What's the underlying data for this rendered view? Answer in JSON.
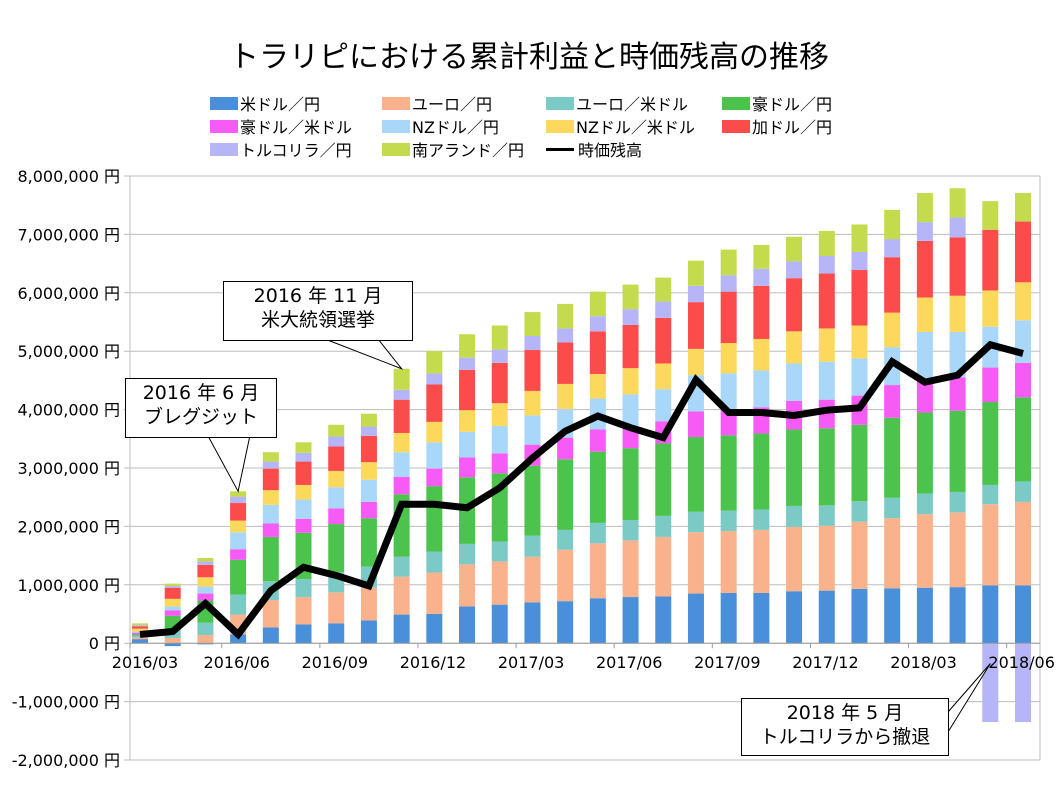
{
  "chart_data": {
    "type": "bar",
    "stacked": true,
    "title": "トラリピにおける累計利益と時価残高の推移",
    "xlabel": "",
    "ylabel": "",
    "ylim": [
      -2000000,
      8000000
    ],
    "yticks": [
      8000000,
      7000000,
      6000000,
      5000000,
      4000000,
      3000000,
      2000000,
      1000000,
      0,
      -1000000,
      -2000000
    ],
    "ytick_labels": [
      "8,000,000 円",
      "7,000,000 円",
      "6,000,000 円",
      "5,000,000 円",
      "4,000,000 円",
      "3,000,000 円",
      "2,000,000 円",
      "1,000,000 円",
      "0 円",
      "-1,000,000 円",
      "-2,000,000 円"
    ],
    "grid": true,
    "legend_position": "top",
    "categories": [
      "2016/03",
      "2016/04",
      "2016/05",
      "2016/06",
      "2016/07",
      "2016/08",
      "2016/09",
      "2016/10",
      "2016/11",
      "2016/12",
      "2017/01",
      "2017/02",
      "2017/03",
      "2017/04",
      "2017/05",
      "2017/06",
      "2017/07",
      "2017/08",
      "2017/09",
      "2017/10",
      "2017/11",
      "2017/12",
      "2018/01",
      "2018/02",
      "2018/03",
      "2018/04",
      "2018/05",
      "2018/06"
    ],
    "xtick_labels": [
      {
        "index": 0,
        "label": "2016/03"
      },
      {
        "index": 3,
        "label": "2016/06"
      },
      {
        "index": 6,
        "label": "2016/09"
      },
      {
        "index": 9,
        "label": "2016/12"
      },
      {
        "index": 12,
        "label": "2017/03"
      },
      {
        "index": 15,
        "label": "2017/06"
      },
      {
        "index": 18,
        "label": "2017/09"
      },
      {
        "index": 21,
        "label": "2017/12"
      },
      {
        "index": 24,
        "label": "2018/03"
      },
      {
        "index": 27,
        "label": "2018/06"
      }
    ],
    "series": [
      {
        "name": "米ドル/円",
        "color": "#4a8fd9",
        "values": [
          70000,
          -50000,
          -20000,
          150000,
          270000,
          320000,
          340000,
          390000,
          490000,
          500000,
          630000,
          660000,
          700000,
          720000,
          770000,
          790000,
          800000,
          850000,
          860000,
          860000,
          890000,
          900000,
          930000,
          940000,
          950000,
          960000,
          990000,
          990000
        ]
      },
      {
        "name": "ユーロ/円",
        "color": "#f9b28c",
        "values": [
          30000,
          90000,
          140000,
          340000,
          470000,
          470000,
          530000,
          560000,
          650000,
          710000,
          720000,
          740000,
          780000,
          880000,
          940000,
          970000,
          1020000,
          1050000,
          1060000,
          1080000,
          1100000,
          1110000,
          1150000,
          1200000,
          1260000,
          1280000,
          1390000,
          1430000
        ]
      },
      {
        "name": "ユーロ/米ドル",
        "color": "#7ccac6",
        "values": [
          30000,
          140000,
          210000,
          340000,
          320000,
          310000,
          350000,
          360000,
          340000,
          360000,
          350000,
          340000,
          360000,
          340000,
          350000,
          350000,
          360000,
          350000,
          350000,
          350000,
          360000,
          350000,
          350000,
          350000,
          350000,
          350000,
          330000,
          350000
        ]
      },
      {
        "name": "豪ドル/円",
        "color": "#4cc34c",
        "values": [
          20000,
          240000,
          380000,
          600000,
          760000,
          790000,
          820000,
          830000,
          1070000,
          1120000,
          1140000,
          1170000,
          1200000,
          1210000,
          1220000,
          1230000,
          1240000,
          1280000,
          1290000,
          1300000,
          1310000,
          1320000,
          1310000,
          1370000,
          1390000,
          1390000,
          1420000,
          1440000
        ]
      },
      {
        "name": "豪ドル/米ドル",
        "color": "#f65cf5",
        "values": [
          30000,
          90000,
          120000,
          180000,
          230000,
          240000,
          270000,
          280000,
          300000,
          300000,
          340000,
          340000,
          360000,
          370000,
          380000,
          370000,
          380000,
          440000,
          440000,
          450000,
          490000,
          490000,
          500000,
          560000,
          570000,
          570000,
          590000,
          590000
        ]
      },
      {
        "name": "NZドル/円",
        "color": "#a9d7f9",
        "values": [
          20000,
          70000,
          120000,
          290000,
          320000,
          330000,
          360000,
          380000,
          420000,
          450000,
          440000,
          470000,
          500000,
          490000,
          530000,
          550000,
          550000,
          620000,
          620000,
          630000,
          640000,
          650000,
          640000,
          650000,
          810000,
          780000,
          700000,
          730000
        ]
      },
      {
        "name": "NZドル/米ドル",
        "color": "#fcd95d",
        "values": [
          50000,
          130000,
          160000,
          200000,
          250000,
          250000,
          280000,
          300000,
          330000,
          350000,
          370000,
          390000,
          420000,
          430000,
          420000,
          450000,
          440000,
          450000,
          520000,
          540000,
          550000,
          570000,
          560000,
          590000,
          590000,
          620000,
          620000,
          650000
        ]
      },
      {
        "name": "加ドル/円",
        "color": "#fb4b4b",
        "values": [
          40000,
          190000,
          210000,
          300000,
          370000,
          400000,
          420000,
          450000,
          570000,
          640000,
          690000,
          690000,
          700000,
          710000,
          730000,
          740000,
          780000,
          800000,
          880000,
          910000,
          910000,
          940000,
          950000,
          950000,
          970000,
          1000000,
          1040000,
          1040000
        ]
      },
      {
        "name": "トルコリラ/円",
        "color": "#b5b5f8",
        "values": [
          20000,
          30000,
          60000,
          110000,
          120000,
          150000,
          170000,
          160000,
          170000,
          190000,
          210000,
          230000,
          240000,
          240000,
          260000,
          270000,
          280000,
          280000,
          280000,
          290000,
          290000,
          300000,
          310000,
          310000,
          320000,
          340000,
          -1350000,
          -1350000
        ]
      },
      {
        "name": "南アランド/円",
        "color": "#c4db4e",
        "values": [
          30000,
          40000,
          60000,
          90000,
          160000,
          180000,
          200000,
          220000,
          360000,
          380000,
          400000,
          410000,
          410000,
          420000,
          420000,
          420000,
          410000,
          430000,
          440000,
          410000,
          420000,
          430000,
          470000,
          500000,
          500000,
          500000,
          490000,
          490000
        ]
      }
    ],
    "line_series": {
      "name": "時価残高",
      "color": "#000000",
      "values": [
        150000,
        200000,
        680000,
        150000,
        900000,
        1300000,
        1160000,
        980000,
        2380000,
        2380000,
        2320000,
        2660000,
        3170000,
        3630000,
        3890000,
        3690000,
        3520000,
        4510000,
        3950000,
        3950000,
        3900000,
        3990000,
        4030000,
        4820000,
        4470000,
        4590000,
        5110000,
        4960000
      ]
    },
    "annotations": [
      {
        "text_line1": "2016 年 6 月",
        "text_line2": "ブレグジット",
        "target_index": 3
      },
      {
        "text_line1": "2016 年 11 月",
        "text_line2": "米大統領選挙",
        "target_index": 8
      },
      {
        "text_line1": "2018 年 5 月",
        "text_line2": "トルコリラから撤退",
        "target_index": 26
      }
    ]
  },
  "legend": {
    "items": [
      {
        "label": "米ドル／円",
        "color": "#4a8fd9"
      },
      {
        "label": "ユーロ／円",
        "color": "#f9b28c"
      },
      {
        "label": "ユーロ／米ドル",
        "color": "#7ccac6"
      },
      {
        "label": "豪ドル／円",
        "color": "#4cc34c"
      },
      {
        "label": "豪ドル／米ドル",
        "color": "#f65cf5"
      },
      {
        "label": "NZドル／円",
        "color": "#a9d7f9"
      },
      {
        "label": "NZドル／米ドル",
        "color": "#fcd95d"
      },
      {
        "label": "加ドル／円",
        "color": "#fb4b4b"
      },
      {
        "label": "トルコリラ／円",
        "color": "#b5b5f8"
      },
      {
        "label": "南アランド／円",
        "color": "#c4db4e"
      }
    ],
    "line_label": "時価残高"
  }
}
